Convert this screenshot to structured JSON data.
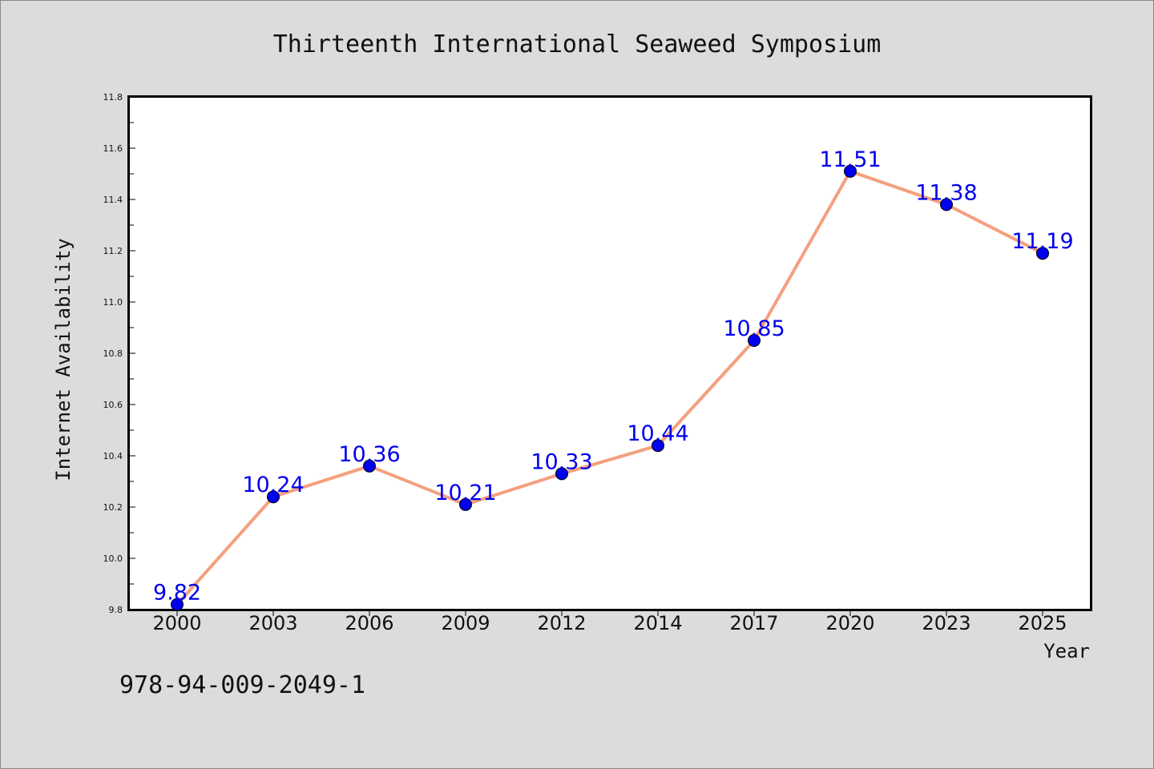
{
  "chart_data": {
    "type": "line",
    "title": "Thirteenth International Seaweed Symposium",
    "xlabel": "Year",
    "ylabel": "Internet Availability",
    "categories": [
      "2000",
      "2003",
      "2006",
      "2009",
      "2012",
      "2014",
      "2017",
      "2020",
      "2023",
      "2025"
    ],
    "series": [
      {
        "values": [
          9.82,
          10.24,
          10.36,
          10.21,
          10.33,
          10.44,
          10.85,
          11.51,
          11.38,
          11.19
        ]
      }
    ],
    "data_labels": [
      "9.82",
      "10.24",
      "10.36",
      "10.21",
      "10.33",
      "10.44",
      "10.85",
      "11.51",
      "11.38",
      "11.19"
    ],
    "ylim": [
      9.8,
      11.8
    ],
    "yticks": [
      9.8,
      10.0,
      10.2,
      10.4,
      10.6,
      10.8,
      11.0,
      11.2,
      11.4,
      11.6,
      11.8
    ],
    "ytick_labels": [
      "9.8",
      "10.0",
      "10.2",
      "10.4",
      "10.6",
      "10.8",
      "11.0",
      "11.2",
      "11.4",
      "11.6",
      "11.8"
    ],
    "grid": false,
    "line_color": "#f4a07e",
    "marker_color": "#0000ee",
    "label_color": "#0000ee"
  },
  "footer": {
    "text": "978-94-009-2049-1"
  },
  "colors": {
    "background": "#dcdcdc",
    "plot_background": "#ffffff",
    "axis": "#000000"
  }
}
